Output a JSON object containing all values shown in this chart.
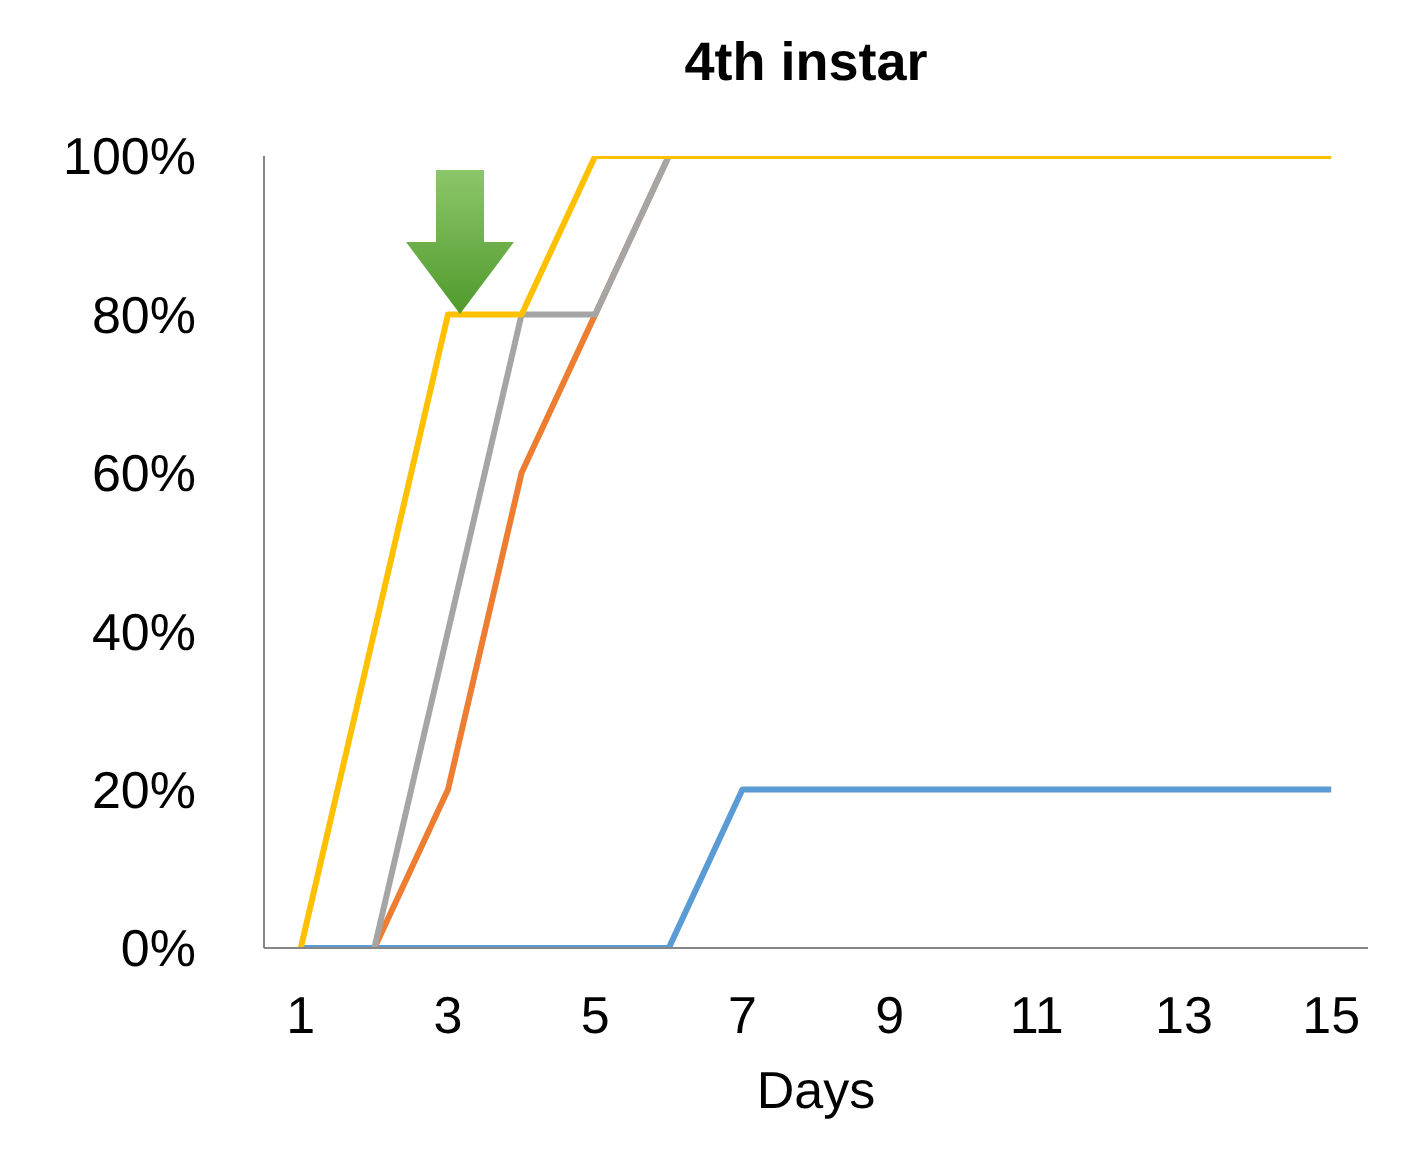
{
  "chart_data": {
    "type": "line",
    "title": "4th instar",
    "xlabel": "Days",
    "x": [
      1,
      2,
      3,
      4,
      5,
      6,
      7,
      8,
      9,
      10,
      11,
      12,
      13,
      14,
      15
    ],
    "xlim": [
      0.5,
      15.5
    ],
    "xticks": [
      1,
      3,
      5,
      7,
      9,
      11,
      13,
      15
    ],
    "series": [
      {
        "color": "#5b9bd5",
        "values": [
          0,
          0,
          0,
          0,
          0,
          0,
          20,
          20,
          20,
          20,
          20,
          20,
          20,
          20,
          20
        ]
      },
      {
        "color": "#ed7d31",
        "values": [
          null,
          0,
          20,
          60,
          80,
          100,
          null,
          null,
          null,
          null,
          null,
          null,
          null,
          null,
          null
        ]
      },
      {
        "color": "#a5a5a5",
        "values": [
          null,
          0,
          40,
          80,
          80,
          100,
          null,
          null,
          null,
          null,
          null,
          null,
          null,
          null,
          null
        ]
      },
      {
        "color": "#ffc000",
        "values": [
          0,
          40,
          80,
          80,
          100,
          100,
          100,
          100,
          100,
          100,
          100,
          100,
          100,
          100,
          100
        ]
      }
    ],
    "ylim": [
      0,
      100
    ],
    "yticks": [
      {
        "value": 0,
        "label": "0%"
      },
      {
        "value": 20,
        "label": "20%"
      },
      {
        "value": 40,
        "label": "40%"
      },
      {
        "value": 60,
        "label": "60%"
      },
      {
        "value": 80,
        "label": "80%"
      },
      {
        "value": 100,
        "label": "100%"
      }
    ],
    "grid": false,
    "marker": "none",
    "line_style": "solid"
  }
}
